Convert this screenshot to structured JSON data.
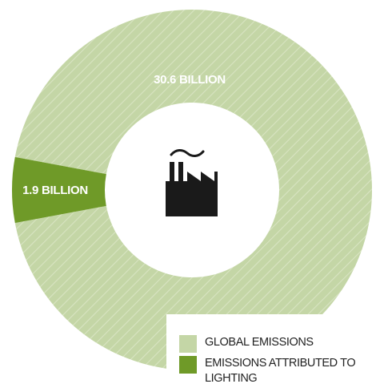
{
  "colors": {
    "global": "#c4d6a6",
    "global_hatch": "#d8e4c2",
    "lighting": "#6f9a28",
    "icon": "#1a1a1a"
  },
  "center_icon": "factory-icon",
  "legend": {
    "items": [
      {
        "label": "GLOBAL EMISSIONS",
        "color": "#c4d6a6"
      },
      {
        "label": "EMISSIONS ATTRIBUTED TO LIGHTING",
        "color": "#6f9a28"
      }
    ]
  },
  "chart_data": {
    "type": "pie",
    "variant": "donut",
    "categories": [
      "GLOBAL EMISSIONS",
      "EMISSIONS ATTRIBUTED TO LIGHTING"
    ],
    "values": [
      30.6,
      1.9
    ],
    "data_labels": [
      "30.6 BILLION",
      "1.9 BILLION"
    ],
    "legend_position": "bottom-right"
  }
}
